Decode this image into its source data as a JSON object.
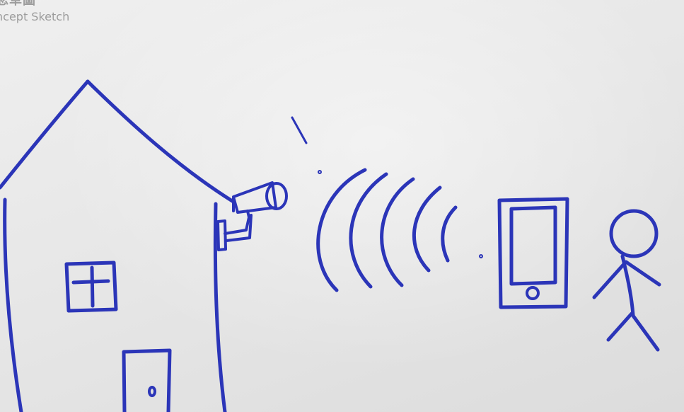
{
  "header": {
    "title_zh": "念草圖",
    "title_en": "ncept Sketch"
  },
  "colors": {
    "ink": "#2b35b8",
    "paper": "#e9e9e9",
    "header_text": "#9c9c9c"
  },
  "sketch": {
    "elements": [
      "house",
      "window",
      "door",
      "security-camera",
      "wireless-signal-waves",
      "smartphone",
      "stick-figure-person"
    ]
  }
}
